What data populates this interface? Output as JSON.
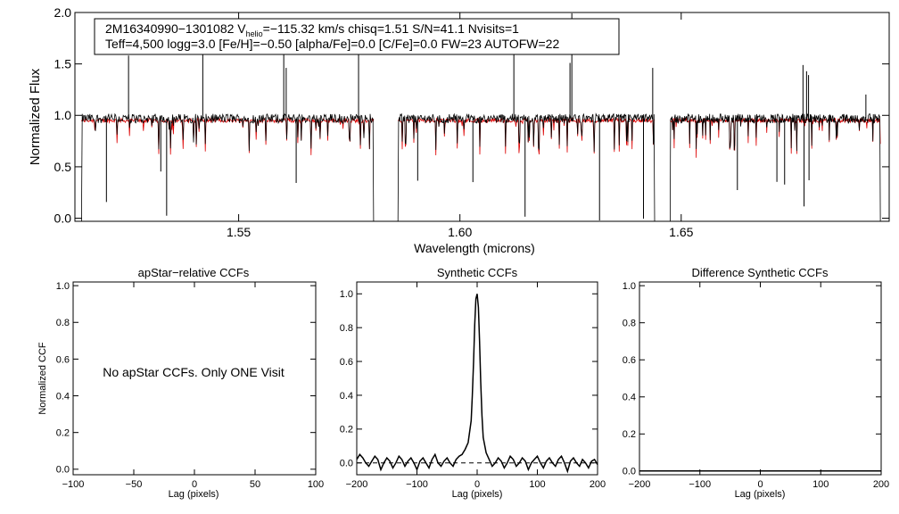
{
  "colors": {
    "observed": "#000000",
    "model": "#dd0000",
    "axis": "#000000",
    "background": "#ffffff"
  },
  "chart_data": [
    {
      "id": "spectrum",
      "type": "line",
      "title": "",
      "xlabel": "Wavelength (microns)",
      "ylabel": "Normalized Flux",
      "xlim": [
        1.513,
        1.697
      ],
      "ylim": [
        -0.03,
        2.0
      ],
      "xticks": [
        1.55,
        1.6,
        1.65
      ],
      "xtick_labels": [
        "1.55",
        "1.60",
        "1.65"
      ],
      "yticks": [
        0.0,
        0.5,
        1.0,
        1.5,
        2.0
      ],
      "ytick_labels": [
        "0.0",
        "0.5",
        "1.0",
        "1.5",
        "2.0"
      ],
      "chips": [
        [
          1.5145,
          1.5805
        ],
        [
          1.586,
          1.644
        ],
        [
          1.6475,
          1.695
        ]
      ],
      "continuum_level": 0.97,
      "model_level": 0.95,
      "info_box": {
        "line1_prefix": "2M16340990−1301082  V",
        "line1_sub": "helio",
        "line1_suffix": "=−115.32 km/s  chisq=1.51  S/N=41.1  Nvisits=1",
        "line2": "Teff=4,500 logg=3.0 [Fe/H]=−0.50 [alpha/Fe]=0.0 [C/Fe]=0.0 FW=23 AUTOFW=22"
      },
      "series": [
        {
          "name": "observed spectrum",
          "color": "#000000"
        },
        {
          "name": "model spectrum",
          "color": "#dd0000"
        }
      ]
    },
    {
      "id": "apstar-ccf",
      "type": "line",
      "title": "apStar−relative CCFs",
      "xlabel": "Lag (pixels)",
      "ylabel": "Normalized CCF",
      "xlim": [
        -100,
        100
      ],
      "ylim": [
        -0.03,
        1.02
      ],
      "xticks": [
        -100,
        -50,
        0,
        50,
        100
      ],
      "xtick_labels": [
        "−100",
        "−50",
        "0",
        "50",
        "100"
      ],
      "yticks": [
        0.0,
        0.2,
        0.4,
        0.6,
        0.8,
        1.0
      ],
      "ytick_labels": [
        "0.0",
        "0.2",
        "0.4",
        "0.6",
        "0.8",
        "1.0"
      ],
      "annotation": "No apStar CCFs.  Only ONE Visit",
      "series": []
    },
    {
      "id": "synthetic-ccf",
      "type": "line",
      "title": "Synthetic CCFs",
      "xlabel": "Lag (pixels)",
      "ylabel": "",
      "xlim": [
        -200,
        200
      ],
      "ylim": [
        -0.07,
        1.07
      ],
      "xticks": [
        -200,
        -100,
        0,
        100,
        200
      ],
      "xtick_labels": [
        "−200",
        "−100",
        "0",
        "100",
        "200"
      ],
      "yticks": [
        0.0,
        0.2,
        0.4,
        0.6,
        0.8,
        1.0
      ],
      "ytick_labels": [
        "0.0",
        "0.2",
        "0.4",
        "0.6",
        "0.8",
        "1.0"
      ],
      "baseline": 0.0,
      "series": [
        {
          "name": "synthetic ccf",
          "x": [
            -200,
            -195,
            -190,
            -185,
            -180,
            -175,
            -170,
            -165,
            -160,
            -155,
            -150,
            -145,
            -140,
            -135,
            -130,
            -125,
            -120,
            -115,
            -110,
            -105,
            -100,
            -95,
            -90,
            -85,
            -80,
            -75,
            -70,
            -65,
            -60,
            -55,
            -50,
            -45,
            -40,
            -35,
            -30,
            -25,
            -20,
            -15,
            -10,
            -8,
            -6,
            -4,
            -2,
            0,
            2,
            4,
            6,
            8,
            10,
            15,
            20,
            25,
            30,
            35,
            40,
            45,
            50,
            55,
            60,
            65,
            70,
            75,
            80,
            85,
            90,
            95,
            100,
            105,
            110,
            115,
            120,
            125,
            130,
            135,
            140,
            145,
            150,
            155,
            160,
            165,
            170,
            175,
            180,
            185,
            190,
            195,
            200
          ],
          "y": [
            0.02,
            0.05,
            0.03,
            0.0,
            -0.02,
            0.01,
            0.04,
            0.02,
            -0.04,
            0.0,
            0.03,
            0.01,
            -0.03,
            0.0,
            0.04,
            0.02,
            -0.02,
            0.01,
            0.03,
            0.0,
            -0.04,
            0.01,
            0.03,
            0.0,
            -0.03,
            0.02,
            0.05,
            0.0,
            -0.02,
            0.01,
            0.03,
            0.0,
            -0.02,
            0.02,
            0.04,
            0.05,
            0.08,
            0.12,
            0.25,
            0.4,
            0.6,
            0.82,
            0.97,
            1.0,
            0.92,
            0.72,
            0.48,
            0.28,
            0.15,
            0.06,
            0.02,
            -0.02,
            0.0,
            0.03,
            0.01,
            -0.03,
            0.0,
            0.04,
            0.02,
            -0.02,
            0.0,
            0.03,
            0.01,
            -0.04,
            0.0,
            0.02,
            0.04,
            0.0,
            -0.03,
            0.01,
            0.03,
            0.0,
            -0.02,
            0.02,
            0.04,
            0.0,
            -0.05,
            0.01,
            0.03,
            0.0,
            -0.02,
            0.02,
            0.0,
            -0.03,
            0.01,
            0.02,
            -0.01
          ]
        }
      ]
    },
    {
      "id": "difference-ccf",
      "type": "line",
      "title": "Difference Synthetic CCFs",
      "xlabel": "Lag (pixels)",
      "ylabel": "",
      "xlim": [
        -200,
        200
      ],
      "ylim": [
        -0.02,
        1.02
      ],
      "xticks": [
        -200,
        -100,
        0,
        100,
        200
      ],
      "xtick_labels": [
        "−200",
        "−100",
        "0",
        "100",
        "200"
      ],
      "yticks": [
        0.0,
        0.2,
        0.4,
        0.6,
        0.8,
        1.0
      ],
      "ytick_labels": [
        "0.0",
        "0.2",
        "0.4",
        "0.6",
        "0.8",
        "1.0"
      ],
      "series": [
        {
          "name": "difference ccf",
          "x": [
            -200,
            200
          ],
          "y": [
            0.0,
            0.0
          ]
        }
      ]
    }
  ]
}
